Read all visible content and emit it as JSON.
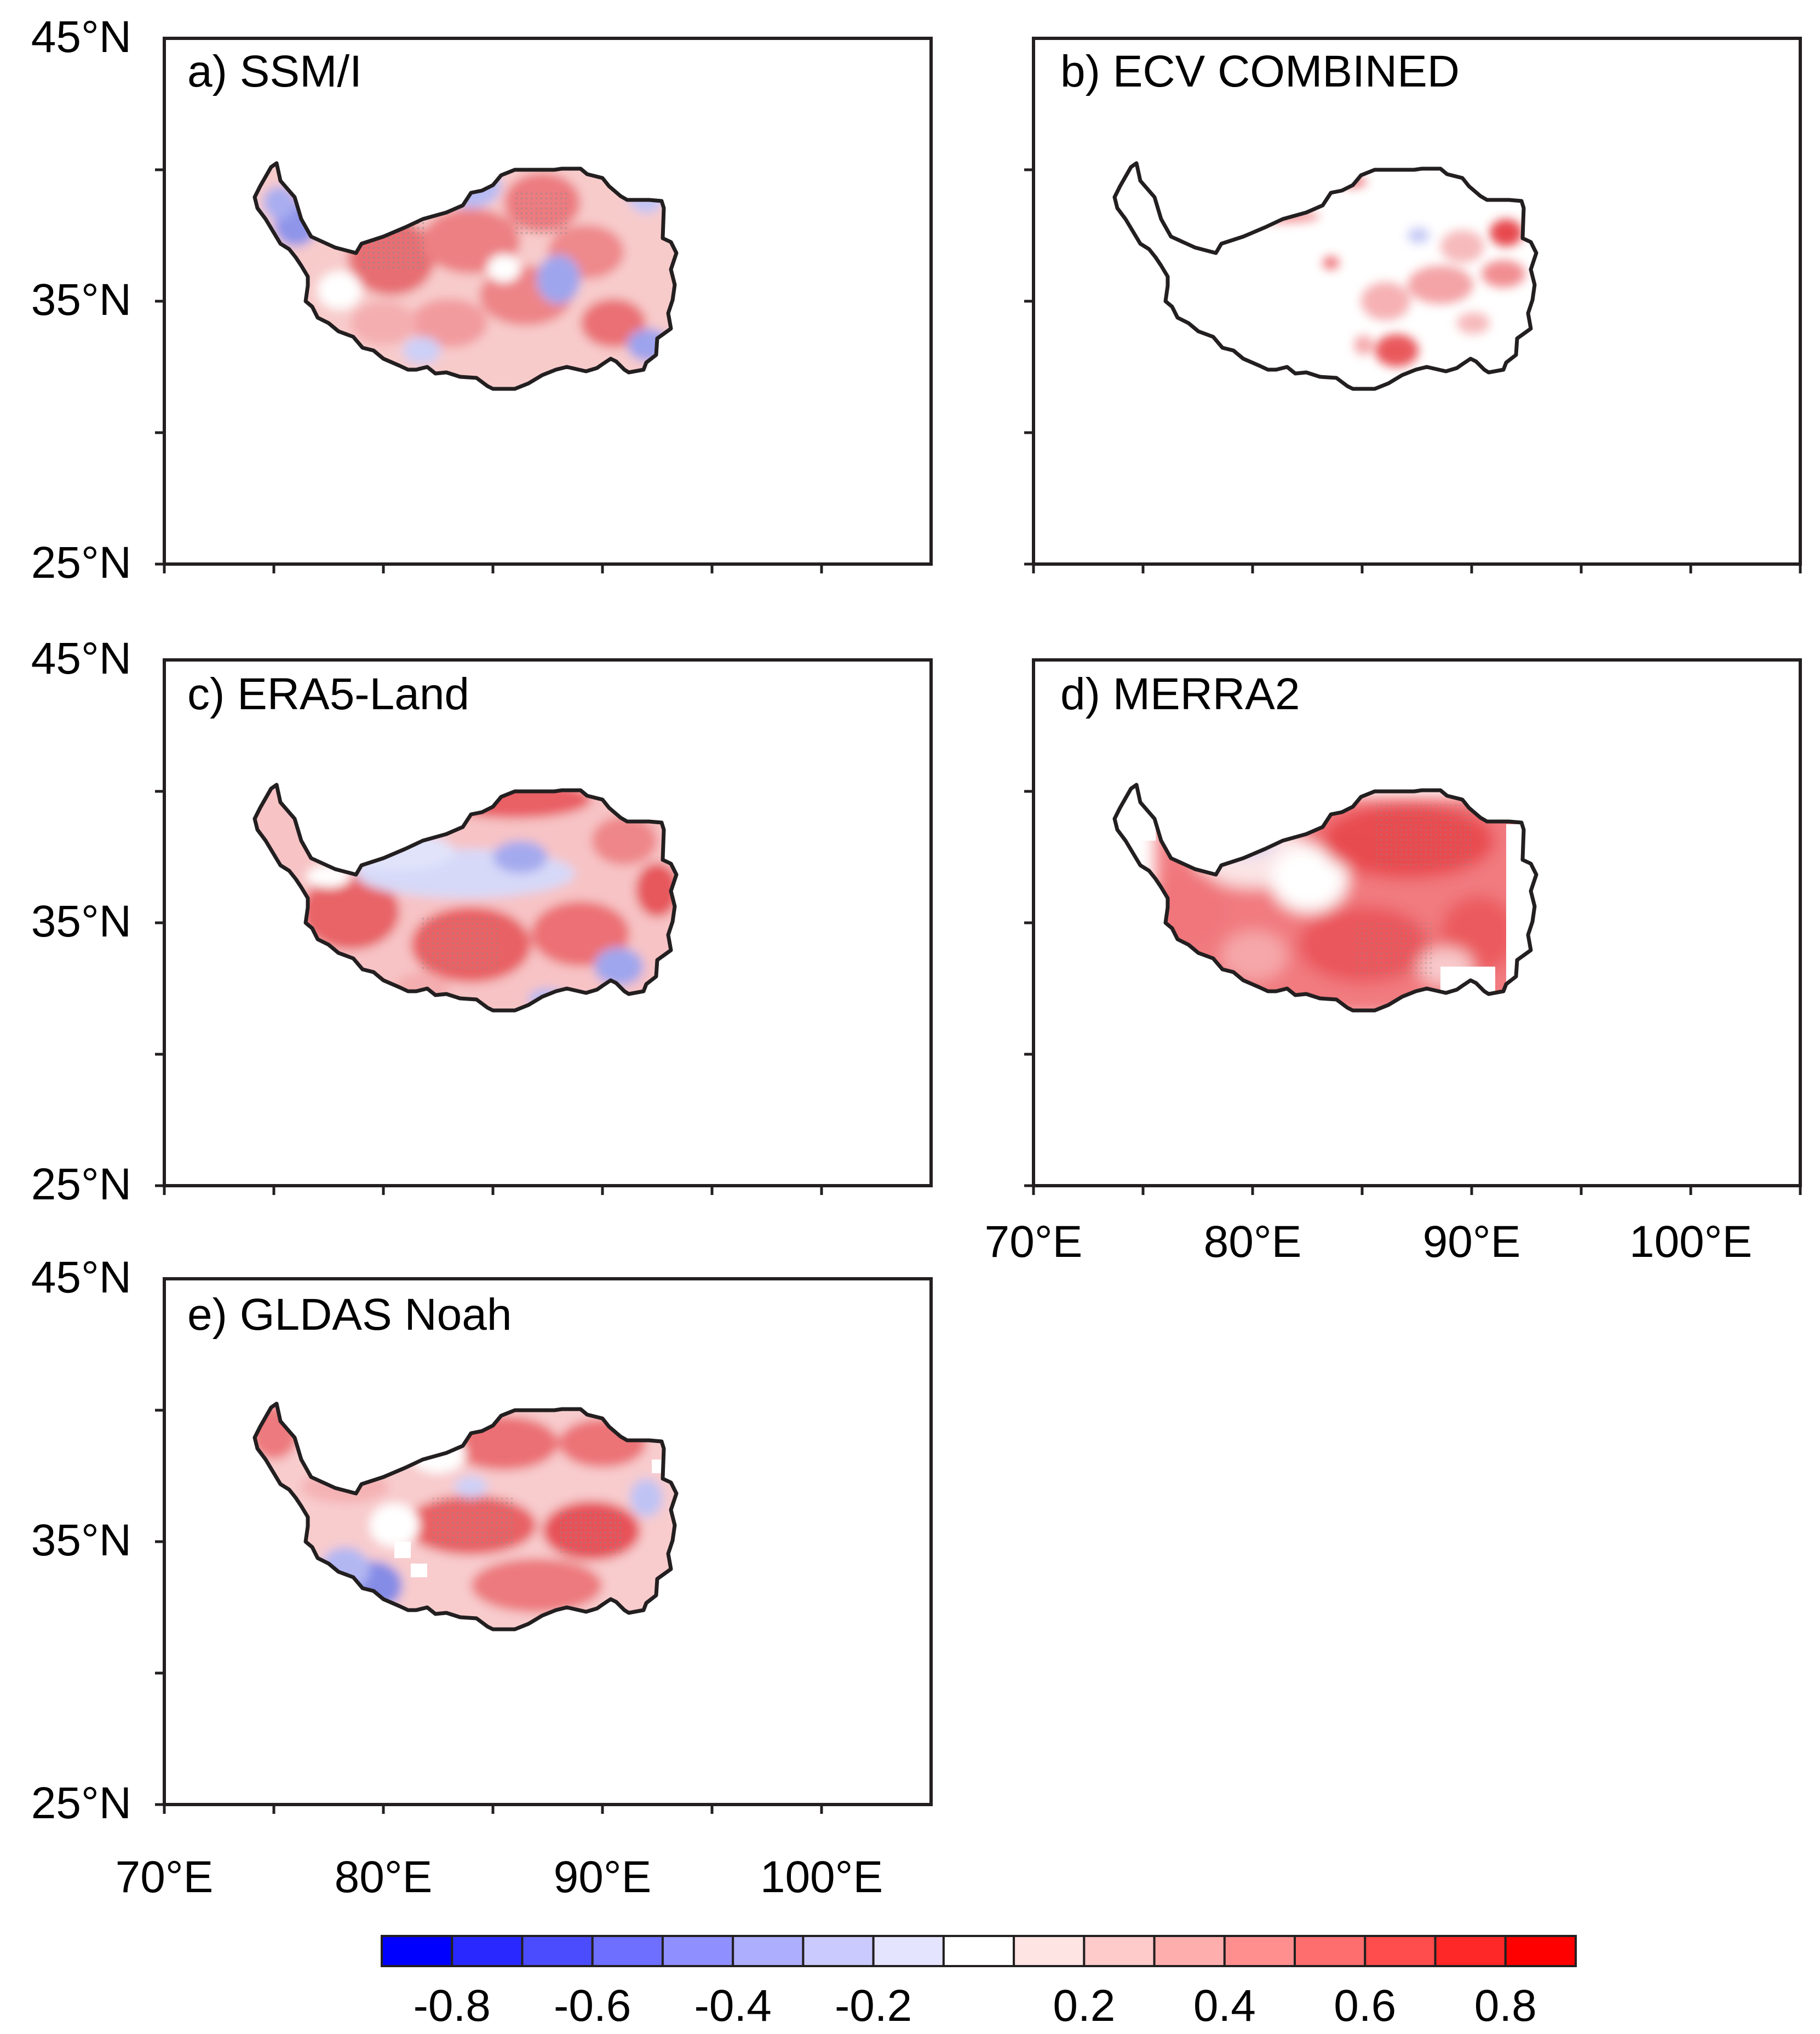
{
  "figure": {
    "lat_labels": [
      "45°N",
      "35°N",
      "25°N"
    ],
    "lon_labels": [
      "70°E",
      "80°E",
      "90°E",
      "100°E"
    ],
    "panels": [
      {
        "id": "a",
        "title": "a) SSM/I"
      },
      {
        "id": "b",
        "title": "b) ECV COMBINED"
      },
      {
        "id": "c",
        "title": "c) ERA5-Land"
      },
      {
        "id": "d",
        "title": "d) MERRA2"
      },
      {
        "id": "e",
        "title": "e) GLDAS Noah"
      }
    ]
  },
  "colorbar": {
    "labels": [
      "-0.8",
      "-0.6",
      "-0.4",
      "-0.2",
      "0.2",
      "0.4",
      "0.6",
      "0.8"
    ],
    "colors": [
      "#0000ff",
      "#2828ff",
      "#4c4cff",
      "#6e6eff",
      "#8f8fff",
      "#aeaeff",
      "#cacaff",
      "#e4e4ff",
      "#ffffff",
      "#ffe4e4",
      "#ffcaca",
      "#ffaeae",
      "#ff8f8f",
      "#ff6e6e",
      "#ff4c4c",
      "#ff2828",
      "#ff0000"
    ]
  },
  "colors": {
    "positive": "#e8333a",
    "negative": "#4d5bd6",
    "outline": "#231f20"
  }
}
